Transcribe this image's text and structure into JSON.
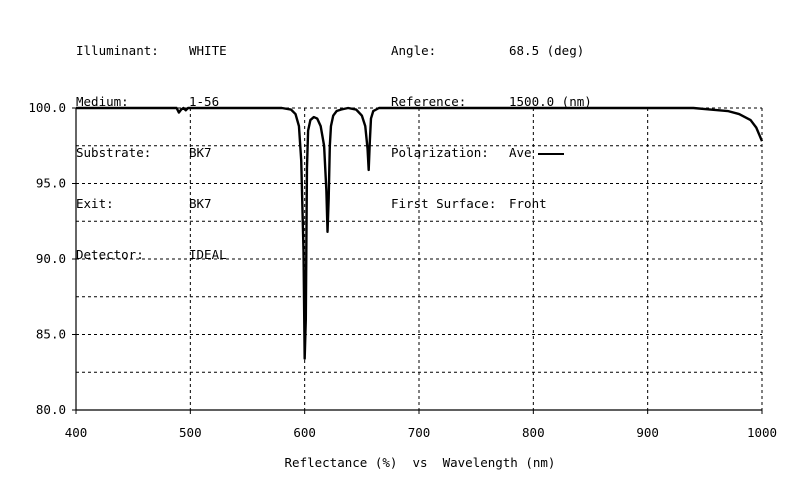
{
  "header": {
    "left": [
      {
        "label": "Illuminant:",
        "value": "WHITE"
      },
      {
        "label": "Medium:",
        "value": "1-56"
      },
      {
        "label": "Substrate:",
        "value": "BK7"
      },
      {
        "label": "Exit:",
        "value": "BK7"
      },
      {
        "label": "Detector:",
        "value": "IDEAL"
      }
    ],
    "right": [
      {
        "label": "Angle:",
        "value": "68.5 (deg)"
      },
      {
        "label": "Reference:",
        "value": "1500.0 (nm)"
      },
      {
        "label": "Polarization:",
        "value": "Ave"
      },
      {
        "label": "First Surface:",
        "value": "Front"
      }
    ]
  },
  "chart_data": {
    "type": "line",
    "title": "",
    "xlabel": "Wavelength (nm)",
    "ylabel": "Reflectance (%)",
    "axis_caption": "Reflectance (%)  vs  Wavelength (nm)",
    "xlim": [
      400,
      1000
    ],
    "ylim": [
      80,
      100
    ],
    "x_ticks": [
      "400",
      "500",
      "600",
      "700",
      "800",
      "900",
      "1000"
    ],
    "y_ticks": [
      "80.0",
      "85.0",
      "90.0",
      "95.0",
      "100.0"
    ],
    "grid": true,
    "grid_style": "dashed",
    "series": [
      {
        "name": "Ave",
        "color": "#000000",
        "x": [
          400,
          480,
          488,
          490,
          492,
          494,
          496,
          498,
          500,
          580,
          588,
          592,
          595,
          597,
          599,
          600,
          601,
          602,
          603,
          605,
          608,
          611,
          614,
          617,
          619,
          620,
          621,
          622,
          623,
          625,
          628,
          632,
          638,
          645,
          650,
          653,
          655,
          656,
          657,
          658,
          660,
          665,
          680,
          750,
          850,
          940,
          955,
          970,
          980,
          990,
          995,
          1000
        ],
        "y": [
          100.0,
          100.0,
          100.0,
          99.7,
          99.9,
          100.0,
          99.85,
          100.0,
          100.0,
          100.0,
          99.9,
          99.6,
          98.8,
          96.5,
          90.5,
          83.4,
          86.0,
          96.0,
          98.5,
          99.2,
          99.4,
          99.3,
          98.8,
          97.5,
          94.5,
          91.8,
          94.0,
          97.5,
          98.8,
          99.5,
          99.8,
          99.9,
          100.0,
          99.9,
          99.5,
          98.8,
          97.3,
          95.9,
          97.8,
          99.3,
          99.8,
          100.0,
          100.0,
          100.0,
          100.0,
          100.0,
          99.9,
          99.8,
          99.6,
          99.2,
          98.7,
          97.8
        ]
      }
    ]
  }
}
